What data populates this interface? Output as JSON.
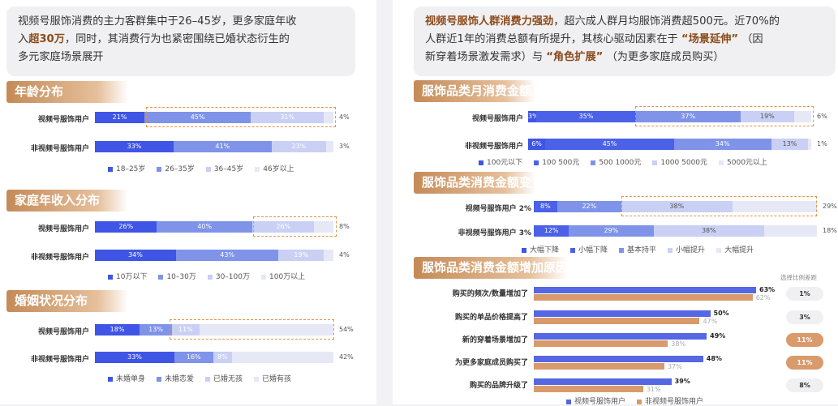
{
  "colors": {
    "c1": "#3f55e5",
    "c2": "#7f93e9",
    "c3": "#c9d0f4",
    "c4": "#e6e8f6",
    "cmp_a": "#5567e2",
    "cmp_b": "#d99a6c",
    "accent": "#8b4a1a"
  },
  "left_intro": {
    "p1": "视频号服饰消费的主力客群集中于26–45岁，更多家庭年收",
    "p2": "入",
    "p2_bold": "超30万",
    "p3": "，同时，其消费行为也紧密围绕已婚状态衍生的",
    "p4": "多元家庭场景展开"
  },
  "right_intro": {
    "b1": "视频号服饰人群消费力强劲",
    "t1": "，超六成人群月均服饰消费超500元。近70%的",
    "t2": "人群近1年的消费总额有所提升，其核心驱动因素在于",
    "b2": "“场景延伸”",
    "t3": "（因",
    "t4": "新穿着场景激发需求）与",
    "b3": "“角色扩展”",
    "t5": "（为更多家庭成员购买）"
  },
  "chart_data": [
    {
      "type": "bar",
      "stacked": true,
      "orientation": "horizontal",
      "title": "年龄分布",
      "categories": [
        "视频号服饰用户",
        "非视频号服饰用户"
      ],
      "series": [
        {
          "name": "18–25岁",
          "values": [
            21,
            33
          ]
        },
        {
          "name": "26–35岁",
          "values": [
            45,
            41
          ]
        },
        {
          "name": "36–45岁",
          "values": [
            31,
            23
          ]
        },
        {
          "name": "46岁以上",
          "values": [
            4,
            3
          ]
        }
      ]
    },
    {
      "type": "bar",
      "stacked": true,
      "orientation": "horizontal",
      "title": "家庭年收入分布",
      "categories": [
        "视频号服饰用户",
        "非视频号服饰用户"
      ],
      "series": [
        {
          "name": "10万以下",
          "values": [
            26,
            34
          ]
        },
        {
          "name": "10–30万",
          "values": [
            40,
            43
          ]
        },
        {
          "name": "30–100万",
          "values": [
            26,
            19
          ]
        },
        {
          "name": "100万以上",
          "values": [
            8,
            4
          ]
        }
      ]
    },
    {
      "type": "bar",
      "stacked": true,
      "orientation": "horizontal",
      "title": "婚姻状况分布",
      "categories": [
        "视频号服饰用户",
        "非视频号服饰用户"
      ],
      "series": [
        {
          "name": "未婚单身",
          "values": [
            18,
            33
          ]
        },
        {
          "name": "未婚恋爱",
          "values": [
            13,
            16
          ]
        },
        {
          "name": "已婚无孩",
          "values": [
            11,
            8
          ]
        },
        {
          "name": "已婚有孩",
          "values": [
            54,
            42
          ]
        }
      ]
    },
    {
      "type": "bar",
      "stacked": true,
      "orientation": "horizontal",
      "title": "服饰品类月消费金额",
      "categories": [
        "视频号服饰用户",
        "非视频号服饰用户"
      ],
      "series": [
        {
          "name": "100元以下",
          "values": [
            3,
            6
          ]
        },
        {
          "name": "100 500元",
          "values": [
            35,
            45
          ]
        },
        {
          "name": "500 1000元",
          "values": [
            37,
            34
          ]
        },
        {
          "name": "1000 5000元",
          "values": [
            19,
            13
          ]
        },
        {
          "name": "5000元以上",
          "values": [
            6,
            1
          ]
        }
      ]
    },
    {
      "type": "bar",
      "stacked": true,
      "orientation": "horizontal",
      "title": "服饰品类消费金额变化",
      "categories": [
        "视频号服饰用户",
        "非视频号服饰用户"
      ],
      "category_suffix": [
        "2%",
        "3%"
      ],
      "series": [
        {
          "name": "大幅下降",
          "values": [
            2,
            3
          ]
        },
        {
          "name": "小幅下降",
          "values": [
            8,
            12
          ]
        },
        {
          "name": "基本持平",
          "values": [
            22,
            29
          ]
        },
        {
          "name": "小幅提升",
          "values": [
            38,
            38
          ]
        },
        {
          "name": "大幅提升",
          "values": [
            29,
            18
          ]
        }
      ]
    },
    {
      "type": "bar",
      "orientation": "horizontal",
      "title": "服饰品类消费金额增加原因",
      "categories": [
        "购买的频次/数量增加了",
        "购买的单品价格提高了",
        "新的穿着场景增加了",
        "为更多家庭成员购买了",
        "购买的品牌升级了"
      ],
      "series": [
        {
          "name": "视频号服饰用户",
          "values": [
            63,
            50,
            49,
            48,
            39
          ]
        },
        {
          "name": "非视频号服饰用户",
          "values": [
            62,
            47,
            38,
            37,
            31
          ]
        }
      ],
      "diff_label": "选择比例差距",
      "diff": [
        "1%",
        "3%",
        "11%",
        "11%",
        "8%"
      ]
    }
  ]
}
